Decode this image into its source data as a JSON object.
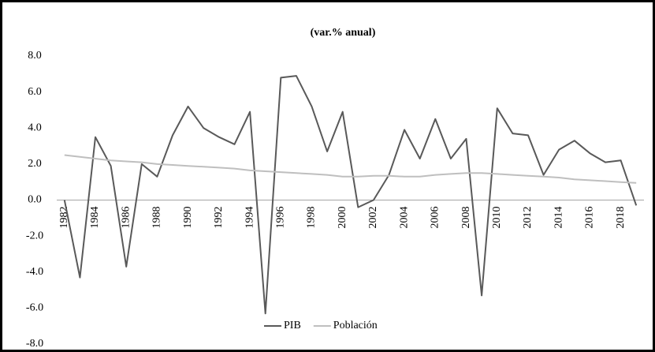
{
  "chart_data": {
    "type": "line",
    "title": "(var.% anual)",
    "categories": [
      "1982",
      null,
      "1984",
      null,
      "1986",
      null,
      "1988",
      null,
      "1990",
      null,
      "1992",
      null,
      "1994",
      null,
      "1996",
      null,
      "1998",
      null,
      "2000",
      null,
      "2002",
      null,
      "2004",
      null,
      "2006",
      null,
      "2008",
      null,
      "2010",
      null,
      "2012",
      null,
      "2014",
      null,
      "2016",
      null,
      "2018",
      null
    ],
    "series": [
      {
        "name": "PIB",
        "color": "#595959",
        "values": [
          0.0,
          -4.3,
          3.5,
          1.9,
          -3.7,
          2.0,
          1.3,
          3.6,
          5.2,
          4.0,
          3.5,
          3.1,
          4.9,
          -6.3,
          6.8,
          6.9,
          5.2,
          2.7,
          4.9,
          -0.4,
          0.0,
          1.4,
          3.9,
          2.3,
          4.5,
          2.3,
          3.4,
          -5.3,
          5.1,
          3.7,
          3.6,
          1.4,
          2.8,
          3.3,
          2.6,
          2.1,
          2.2,
          -0.3
        ]
      },
      {
        "name": "Población",
        "color": "#bfbfbf",
        "values": [
          2.5,
          2.4,
          2.3,
          2.2,
          2.15,
          2.1,
          2.0,
          1.95,
          1.9,
          1.85,
          1.8,
          1.75,
          1.65,
          1.6,
          1.55,
          1.5,
          1.45,
          1.4,
          1.3,
          1.3,
          1.35,
          1.35,
          1.3,
          1.3,
          1.4,
          1.45,
          1.5,
          1.5,
          1.45,
          1.4,
          1.35,
          1.3,
          1.25,
          1.15,
          1.1,
          1.05,
          1.0,
          0.95
        ]
      }
    ],
    "ylim": [
      -8,
      8
    ],
    "yticks": [
      {
        "value": -8,
        "label": "-8.0"
      },
      {
        "value": -6,
        "label": "-6.0"
      },
      {
        "value": -4,
        "label": "-4.0"
      },
      {
        "value": -2,
        "label": "-2.0"
      },
      {
        "value": 0,
        "label": "0.0"
      },
      {
        "value": 2,
        "label": "2.0"
      },
      {
        "value": 4,
        "label": "4.0"
      },
      {
        "value": 6,
        "label": "6.0"
      },
      {
        "value": 8,
        "label": "8.0"
      }
    ],
    "grid": false,
    "legend": "bottom"
  }
}
